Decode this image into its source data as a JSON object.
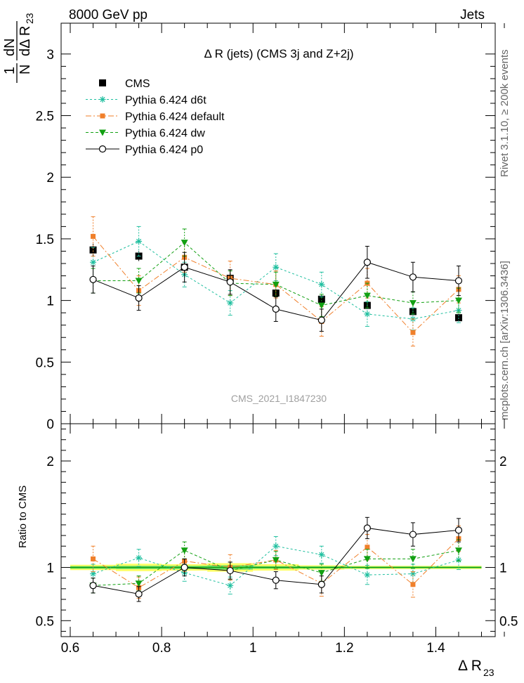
{
  "header": {
    "left": "8000 GeV pp",
    "right": "Jets"
  },
  "side_text": {
    "rivet": "Rivet 3.1.10, ≥ 200k events",
    "mcplots": "mcplots.cern.ch [arXiv:1306.3436]"
  },
  "watermark": "CMS_2021_I1847230",
  "main_title": "Δ R (jets) (CMS 3j and Z+2j)",
  "ylabel_main": {
    "one": "1",
    "N": "N",
    "dN": "dN",
    "denom": "dΔ R",
    "sub": "23"
  },
  "ylabel_ratio": "Ratio to CMS",
  "xlabel": {
    "text": "Δ R",
    "sub": "23"
  },
  "colors": {
    "cms": "#000000",
    "d6t": "#1fbf9f",
    "default": "#f07f2a",
    "dw": "#12a012",
    "p0": "#000000",
    "band_outer": "#ffff66",
    "band_inner": "#66dd66"
  },
  "chart_data": [
    {
      "type": "line",
      "panel": "main",
      "x": [
        0.65,
        0.75,
        0.85,
        0.95,
        1.05,
        1.15,
        1.25,
        1.35,
        1.45
      ],
      "xlim": [
        0.58,
        1.53
      ],
      "ylim": [
        0,
        3.25
      ],
      "xticks": [
        0.6,
        0.8,
        1,
        1.2,
        1.4
      ],
      "yticks": [
        "0",
        "0.5",
        "1",
        "1.5",
        "2",
        "2.5",
        "3"
      ],
      "ytick_values": [
        0,
        0.5,
        1,
        1.5,
        2,
        2.5,
        3
      ],
      "legend_position": "top-left",
      "series": [
        {
          "name": "CMS",
          "key": "cms",
          "marker": "square",
          "values": [
            1.41,
            1.36,
            1.27,
            1.18,
            1.06,
            1.01,
            0.96,
            0.91,
            0.86
          ],
          "err": [
            0.05,
            0.04,
            0.04,
            0.04,
            0.03,
            0.03,
            0.03,
            0.03,
            0.03
          ]
        },
        {
          "name": "Pythia 6.424 d6t",
          "key": "d6t",
          "marker": "star",
          "dash": "3,3",
          "values": [
            1.31,
            1.48,
            1.21,
            0.98,
            1.27,
            1.13,
            0.89,
            0.85,
            0.92
          ],
          "err": [
            0.12,
            0.12,
            0.1,
            0.1,
            0.11,
            0.1,
            0.1,
            0.09,
            0.1
          ]
        },
        {
          "name": "Pythia 6.424 default",
          "key": "default",
          "marker": "square-small",
          "dash": "8,3,2,3",
          "values": [
            1.52,
            1.08,
            1.35,
            1.18,
            1.13,
            0.83,
            1.14,
            0.74,
            1.09
          ],
          "err": [
            0.16,
            0.12,
            0.12,
            0.14,
            0.11,
            0.12,
            0.12,
            0.11,
            0.11
          ]
        },
        {
          "name": "Pythia 6.424 dw",
          "key": "dw",
          "marker": "triangle-down",
          "dash": "4,3",
          "values": [
            1.16,
            1.16,
            1.47,
            1.14,
            1.13,
            0.96,
            1.04,
            0.98,
            1.0
          ],
          "err": [
            0.1,
            0.1,
            0.11,
            0.1,
            0.1,
            0.09,
            0.1,
            0.09,
            0.1
          ]
        },
        {
          "name": "Pythia 6.424 p0",
          "key": "p0",
          "marker": "circle-open",
          "dash": "",
          "values": [
            1.17,
            1.02,
            1.27,
            1.15,
            0.93,
            0.84,
            1.31,
            1.19,
            1.16
          ],
          "err": [
            0.11,
            0.1,
            0.12,
            0.1,
            0.1,
            0.09,
            0.13,
            0.12,
            0.12
          ]
        }
      ]
    },
    {
      "type": "line",
      "panel": "ratio",
      "ylabel": "Ratio to CMS",
      "x": [
        0.65,
        0.75,
        0.85,
        0.95,
        1.05,
        1.15,
        1.25,
        1.35,
        1.45
      ],
      "xlim": [
        0.58,
        1.53
      ],
      "ylim": [
        0.35,
        2.35
      ],
      "xticks": [
        "0.6",
        "0.8",
        "1",
        "1.2",
        "1.4"
      ],
      "xtick_values": [
        0.6,
        0.8,
        1,
        1.2,
        1.4
      ],
      "yticks": [
        "0.5",
        "1",
        "2"
      ],
      "ytick_values": [
        0.5,
        1,
        2
      ],
      "series": [
        {
          "key": "d6t",
          "marker": "star",
          "dash": "3,3",
          "values": [
            0.94,
            1.09,
            0.95,
            0.83,
            1.2,
            1.12,
            0.93,
            0.94,
            1.07
          ],
          "err": [
            0.09,
            0.08,
            0.08,
            0.08,
            0.09,
            0.08,
            0.09,
            0.09,
            0.09
          ]
        },
        {
          "key": "default",
          "marker": "square-small",
          "dash": "8,3,2,3",
          "values": [
            1.08,
            0.81,
            1.06,
            1.0,
            1.07,
            0.85,
            1.19,
            0.84,
            1.27
          ],
          "err": [
            0.12,
            0.1,
            0.1,
            0.12,
            0.09,
            0.12,
            0.12,
            0.12,
            0.12
          ]
        },
        {
          "key": "dw",
          "marker": "triangle-down",
          "dash": "4,3",
          "values": [
            0.83,
            0.85,
            1.16,
            0.97,
            1.07,
            0.95,
            1.08,
            1.08,
            1.16
          ],
          "err": [
            0.07,
            0.07,
            0.08,
            0.08,
            0.08,
            0.08,
            0.09,
            0.09,
            0.1
          ]
        },
        {
          "key": "p0",
          "marker": "circle-open",
          "dash": "",
          "values": [
            0.83,
            0.75,
            1.0,
            0.97,
            0.88,
            0.84,
            1.37,
            1.31,
            1.35
          ],
          "err": [
            0.07,
            0.07,
            0.08,
            0.08,
            0.08,
            0.08,
            0.1,
            0.11,
            0.11
          ]
        }
      ],
      "band": {
        "x_range": [
          0.6,
          1.5
        ],
        "outer": [
          0.025,
          0.035,
          0.03,
          0.04,
          0.03,
          0.02,
          0.015,
          0.015,
          0.015
        ],
        "inner": [
          0.012,
          0.015,
          0.015,
          0.02,
          0.012,
          0.01,
          0.008,
          0.008,
          0.008
        ]
      }
    }
  ]
}
